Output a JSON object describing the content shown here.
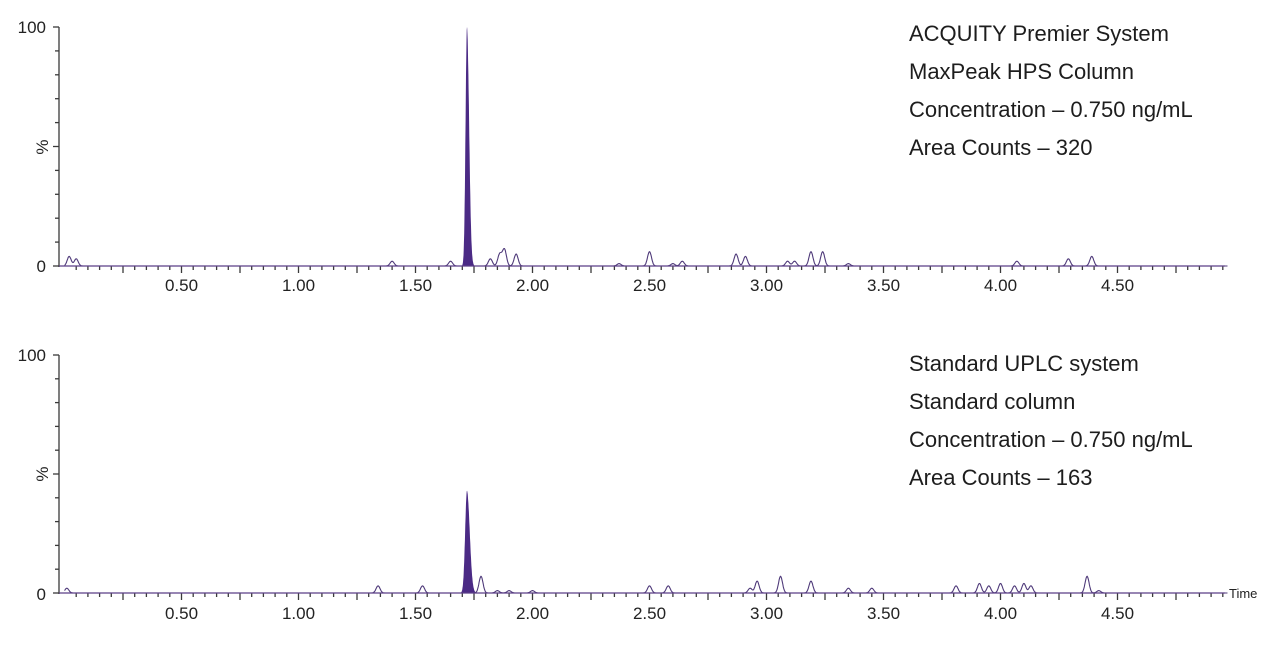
{
  "chart_data": [
    {
      "type": "line",
      "title": "",
      "xlabel": "Time",
      "ylabel": "%",
      "xlim": [
        0,
        5.0
      ],
      "ylim": [
        0,
        100
      ],
      "x_tick_labels": [
        "0.50",
        "1.00",
        "1.50",
        "2.00",
        "2.50",
        "3.00",
        "3.50",
        "4.00",
        "4.50"
      ],
      "y_tick_labels": [
        "0",
        "100"
      ],
      "annotations": [
        "ACQUITY Premier System",
        "MaxPeak HPS Column",
        "Concentration – 0.750 ng/mL",
        "Area Counts – 320"
      ],
      "main_peak": {
        "retention_time": 1.72,
        "height_percent": 100,
        "filled": true,
        "area_counts": 320
      },
      "noise_peaks": [
        {
          "x": 0.02,
          "y": 4
        },
        {
          "x": 0.05,
          "y": 3
        },
        {
          "x": 1.4,
          "y": 2
        },
        {
          "x": 1.65,
          "y": 2
        },
        {
          "x": 1.82,
          "y": 3
        },
        {
          "x": 1.86,
          "y": 5
        },
        {
          "x": 1.88,
          "y": 7
        },
        {
          "x": 1.93,
          "y": 5
        },
        {
          "x": 2.37,
          "y": 1
        },
        {
          "x": 2.5,
          "y": 6
        },
        {
          "x": 2.6,
          "y": 1
        },
        {
          "x": 2.64,
          "y": 2
        },
        {
          "x": 2.87,
          "y": 5
        },
        {
          "x": 2.91,
          "y": 4
        },
        {
          "x": 3.09,
          "y": 2
        },
        {
          "x": 3.12,
          "y": 2
        },
        {
          "x": 3.19,
          "y": 6
        },
        {
          "x": 3.24,
          "y": 6
        },
        {
          "x": 3.35,
          "y": 1
        },
        {
          "x": 4.07,
          "y": 2
        },
        {
          "x": 4.29,
          "y": 3
        },
        {
          "x": 4.39,
          "y": 4
        }
      ]
    },
    {
      "type": "line",
      "title": "",
      "xlabel": "Time",
      "ylabel": "%",
      "xlim": [
        0,
        5.0
      ],
      "ylim": [
        0,
        100
      ],
      "x_tick_labels": [
        "0.50",
        "1.00",
        "1.50",
        "2.00",
        "2.50",
        "3.00",
        "3.50",
        "4.00",
        "4.50"
      ],
      "y_tick_labels": [
        "0",
        "100"
      ],
      "annotations": [
        "Standard UPLC system",
        "Standard column",
        "Concentration – 0.750 ng/mL",
        "Area Counts – 163"
      ],
      "main_peak": {
        "retention_time": 1.72,
        "height_percent": 43,
        "filled": true,
        "area_counts": 163
      },
      "noise_peaks": [
        {
          "x": 0.01,
          "y": 2
        },
        {
          "x": 1.34,
          "y": 3
        },
        {
          "x": 1.53,
          "y": 3
        },
        {
          "x": 1.78,
          "y": 7
        },
        {
          "x": 1.85,
          "y": 1
        },
        {
          "x": 1.9,
          "y": 1
        },
        {
          "x": 2.0,
          "y": 1
        },
        {
          "x": 2.5,
          "y": 3
        },
        {
          "x": 2.58,
          "y": 3
        },
        {
          "x": 2.93,
          "y": 2
        },
        {
          "x": 2.96,
          "y": 5
        },
        {
          "x": 3.06,
          "y": 7
        },
        {
          "x": 3.19,
          "y": 5
        },
        {
          "x": 3.35,
          "y": 2
        },
        {
          "x": 3.45,
          "y": 2
        },
        {
          "x": 3.81,
          "y": 3
        },
        {
          "x": 3.91,
          "y": 4
        },
        {
          "x": 3.95,
          "y": 3
        },
        {
          "x": 4.0,
          "y": 4
        },
        {
          "x": 4.06,
          "y": 3
        },
        {
          "x": 4.1,
          "y": 4
        },
        {
          "x": 4.13,
          "y": 3
        },
        {
          "x": 4.37,
          "y": 7
        },
        {
          "x": 4.42,
          "y": 1
        }
      ]
    }
  ],
  "top": {
    "y_top_label": "100",
    "y_zero_label": "0",
    "y_axis_label": "%",
    "annotation_lines": [
      "ACQUITY Premier System",
      "MaxPeak HPS Column",
      "Concentration – 0.750 ng/mL",
      "Area Counts – 320"
    ]
  },
  "bottom": {
    "y_top_label": "100",
    "y_zero_label": "0",
    "y_axis_label": "%",
    "x_axis_label": "Time",
    "annotation_lines": [
      "Standard UPLC system",
      "Standard column",
      "Concentration – 0.750 ng/mL",
      "Area Counts – 163"
    ]
  },
  "colors": {
    "peak_fill": "#4b2a85",
    "trace": "#4f3a7a",
    "axis": "#3a3a3a"
  }
}
